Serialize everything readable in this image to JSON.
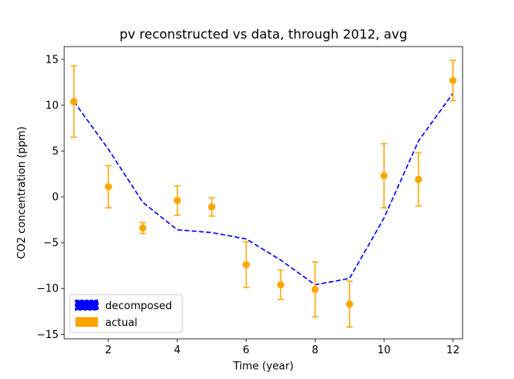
{
  "chart_data": {
    "type": "line",
    "title": "pv reconstructed vs data, through 2012, avg",
    "xlabel": "Time (year)",
    "ylabel": "CO2 concentration (ppm)",
    "xlim": [
      0.72,
      12.28
    ],
    "ylim": [
      -15.5,
      16.4
    ],
    "xticks": [
      2,
      4,
      6,
      8,
      10,
      12
    ],
    "yticks": [
      -15,
      -10,
      -5,
      0,
      5,
      10,
      15
    ],
    "grid": false,
    "legend_position": "lower-left",
    "series": [
      {
        "name": "decomposed",
        "style": "dashed-line",
        "color": "#0000ff",
        "x": [
          1,
          2,
          3,
          4,
          5,
          6,
          7,
          8,
          9,
          10,
          11,
          12
        ],
        "y": [
          10.4,
          5.2,
          -0.6,
          -3.6,
          -3.9,
          -4.6,
          -6.9,
          -9.6,
          -8.9,
          -2.3,
          6.1,
          11.3
        ]
      },
      {
        "name": "actual",
        "style": "errorbar-markers",
        "color": "#ffa500",
        "x": [
          1,
          2,
          3,
          4,
          5,
          6,
          7,
          8,
          9,
          10,
          11,
          12
        ],
        "y": [
          10.4,
          1.1,
          -3.4,
          -0.4,
          -1.1,
          -7.4,
          -9.6,
          -10.1,
          -11.7,
          2.3,
          1.9,
          12.7
        ],
        "err": [
          3.9,
          2.3,
          0.6,
          1.6,
          1.0,
          2.5,
          1.6,
          3.0,
          2.5,
          3.5,
          2.9,
          2.2
        ]
      }
    ]
  }
}
